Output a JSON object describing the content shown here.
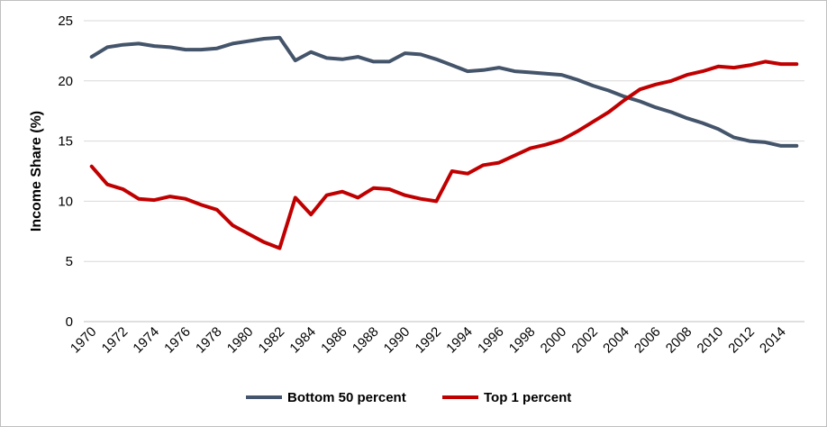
{
  "chart_data": {
    "type": "line",
    "title": "",
    "xlabel": "",
    "ylabel": "Income Share (%)",
    "ylim": [
      0,
      25
    ],
    "yticks": [
      0,
      5,
      10,
      15,
      20,
      25
    ],
    "grid": "horizontal",
    "legend_position": "bottom",
    "x": [
      1970,
      1971,
      1972,
      1973,
      1974,
      1975,
      1976,
      1977,
      1978,
      1979,
      1980,
      1981,
      1982,
      1983,
      1984,
      1985,
      1986,
      1987,
      1988,
      1989,
      1990,
      1991,
      1992,
      1993,
      1994,
      1995,
      1996,
      1997,
      1998,
      1999,
      2000,
      2001,
      2002,
      2003,
      2004,
      2005,
      2006,
      2007,
      2008,
      2009,
      2010,
      2011,
      2012,
      2013,
      2014,
      2015
    ],
    "x_tick_labels": [
      "1970",
      "1972",
      "1974",
      "1976",
      "1978",
      "1980",
      "1982",
      "1984",
      "1986",
      "1988",
      "1990",
      "1992",
      "1994",
      "1996",
      "1998",
      "2000",
      "2002",
      "2004",
      "2006",
      "2008",
      "2010",
      "2012",
      "2014"
    ],
    "series": [
      {
        "name": "Bottom 50 percent",
        "color": "#44546a",
        "values": [
          22.0,
          22.8,
          23.0,
          23.1,
          22.9,
          22.8,
          22.6,
          22.6,
          22.7,
          23.1,
          23.3,
          23.5,
          23.6,
          21.7,
          22.4,
          21.9,
          21.8,
          22.0,
          21.6,
          21.6,
          22.3,
          22.2,
          21.8,
          21.3,
          20.8,
          20.9,
          21.1,
          20.8,
          20.7,
          20.6,
          20.5,
          20.1,
          19.6,
          19.2,
          18.7,
          18.3,
          17.8,
          17.4,
          16.9,
          16.5,
          16.0,
          15.3,
          15.0,
          14.9,
          14.6,
          14.6
        ]
      },
      {
        "name": "Top 1 percent",
        "color": "#c00000",
        "values": [
          12.9,
          11.4,
          11.0,
          10.2,
          10.1,
          10.4,
          10.2,
          9.7,
          9.3,
          8.0,
          7.3,
          6.6,
          6.1,
          10.3,
          8.9,
          10.5,
          10.8,
          10.3,
          11.1,
          11.0,
          10.5,
          10.2,
          10.0,
          12.5,
          12.3,
          13.0,
          13.2,
          13.8,
          14.4,
          14.7,
          15.1,
          15.8,
          16.6,
          17.4,
          18.4,
          19.3,
          19.7,
          20.0,
          20.5,
          20.8,
          21.2,
          21.1,
          21.3,
          21.6,
          21.4,
          21.4
        ]
      }
    ]
  }
}
